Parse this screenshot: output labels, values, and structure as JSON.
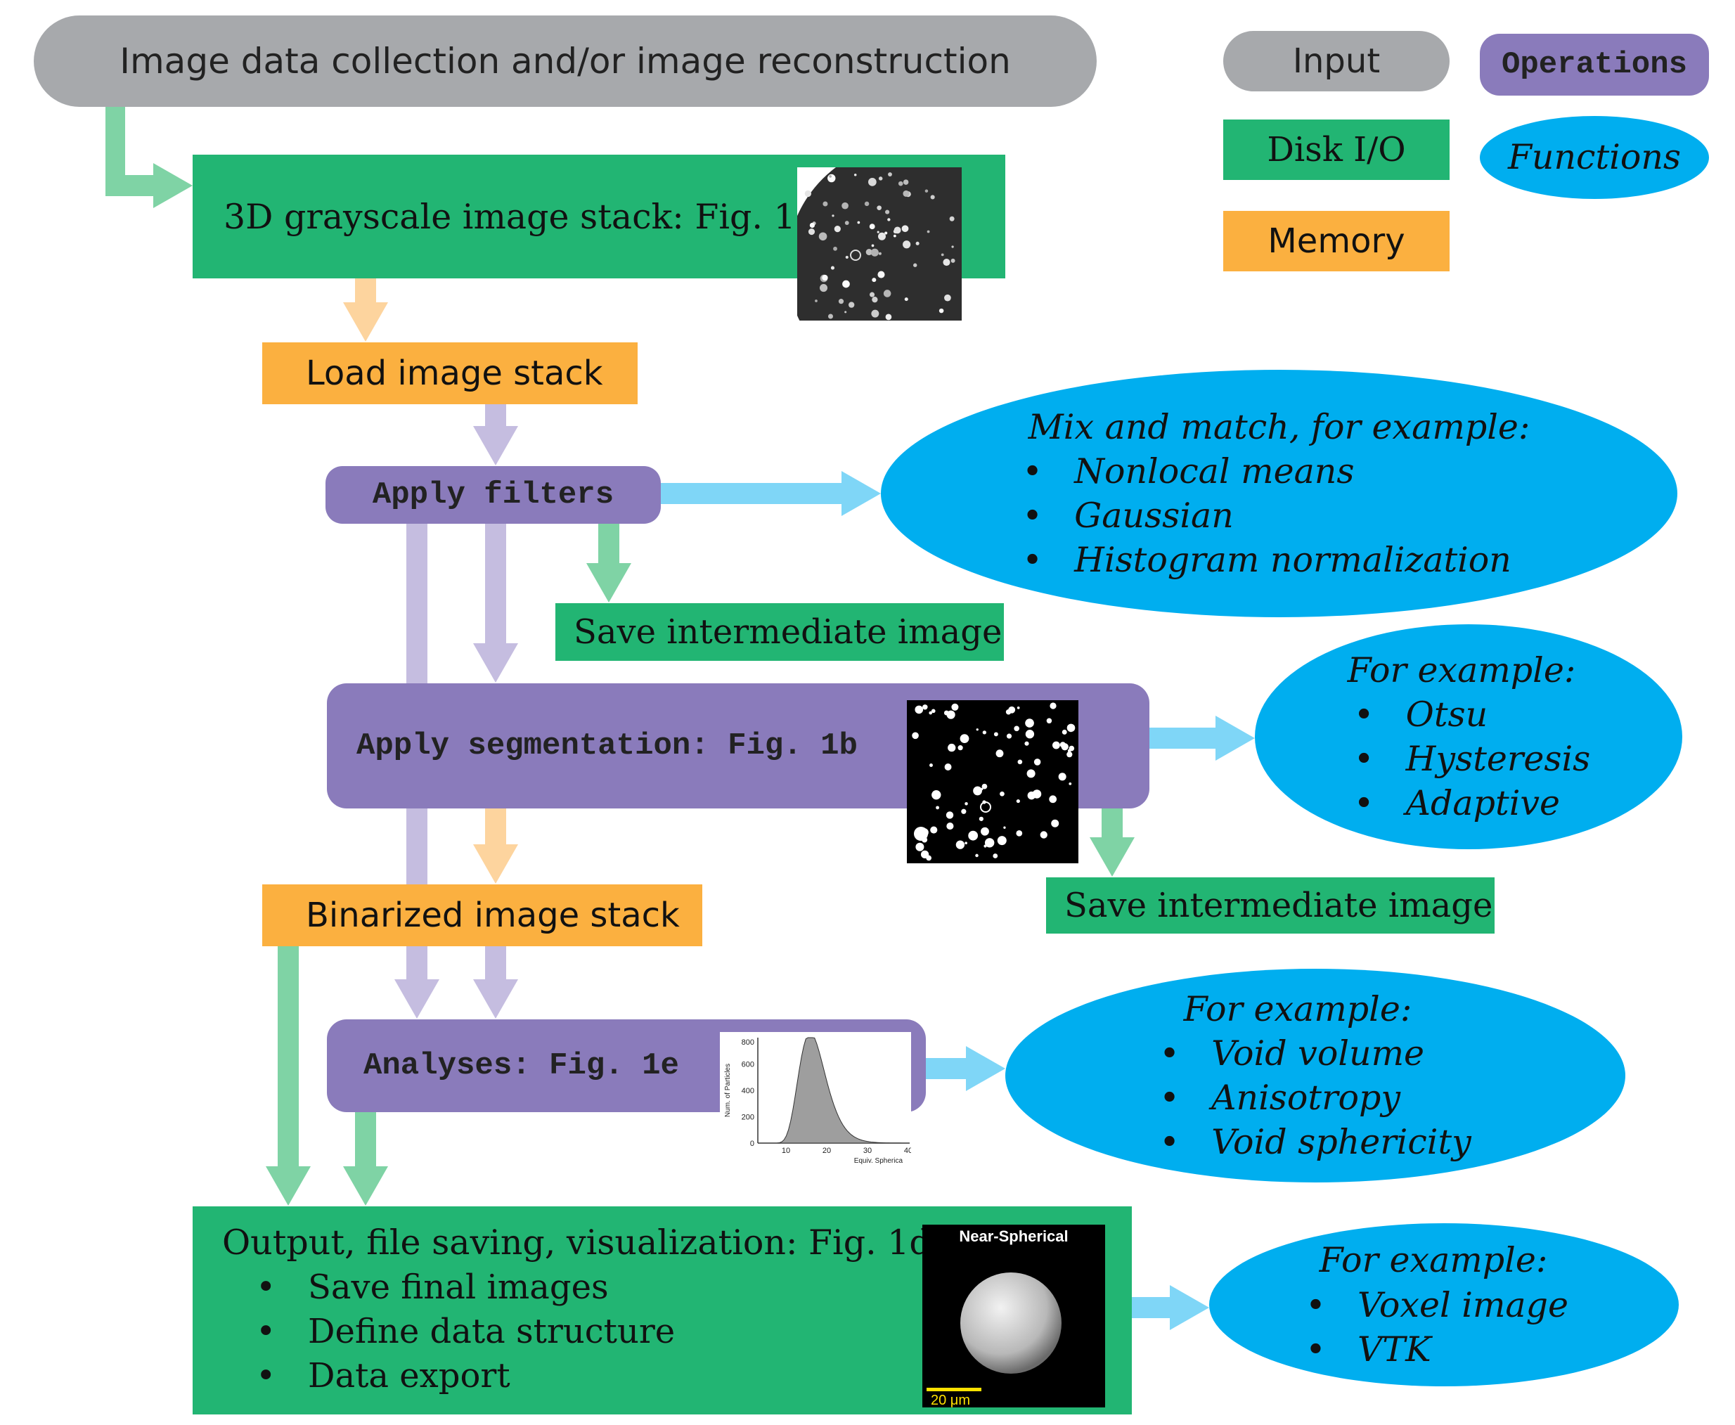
{
  "legend": {
    "input": "Input",
    "disk": "Disk I/O",
    "memory": "Memory",
    "operations": "Operations",
    "functions": "Functions"
  },
  "colors": {
    "input": "#a7a9ac",
    "disk": "#22b573",
    "memory": "#fbb040",
    "operations": "#8a7bbb",
    "functions": "#00aeef",
    "arrow_green": "#7fd3a5",
    "arrow_orange": "#fdd49e",
    "arrow_purple": "#c5bde0",
    "arrow_blue": "#7fd6f7"
  },
  "nodes": {
    "collection": "Image data collection and/or image reconstruction",
    "stack": "3D grayscale image stack:  Fig. 1a",
    "load": "Load image stack",
    "filters": "Apply filters",
    "save1": "Save intermediate image",
    "segmentation": "Apply segmentation: Fig. 1b",
    "save2": "Save intermediate image",
    "binarized": "Binarized image stack",
    "analyses": "Analyses: Fig. 1e",
    "output": {
      "title": "Output, file saving, visualization:  Fig. 1d",
      "items": [
        "Save final images",
        "Define data structure",
        "Data export"
      ]
    }
  },
  "functions": {
    "filters": {
      "title": "Mix and match, for example:",
      "items": [
        "Nonlocal means",
        "Gaussian",
        "Histogram normalization"
      ]
    },
    "segmentation": {
      "title": "For example:",
      "items": [
        "Otsu",
        "Hysteresis",
        "Adaptive"
      ]
    },
    "analyses": {
      "title": "For example:",
      "items": [
        "Void volume",
        "Anisotropy",
        "Void sphericity"
      ]
    },
    "output": {
      "title": "For example:",
      "items": [
        "Voxel image",
        "VTK"
      ]
    }
  },
  "thumbnails": {
    "render_title": "Near-Spherical",
    "render_scale": "20 μm",
    "histogram": {
      "ylabel": "Num. of Particles",
      "xlabel": "Equiv. Spherica",
      "yticks": [
        "800",
        "600",
        "400",
        "200",
        "0"
      ],
      "xticks": [
        "10",
        "20",
        "30",
        "40"
      ]
    }
  }
}
